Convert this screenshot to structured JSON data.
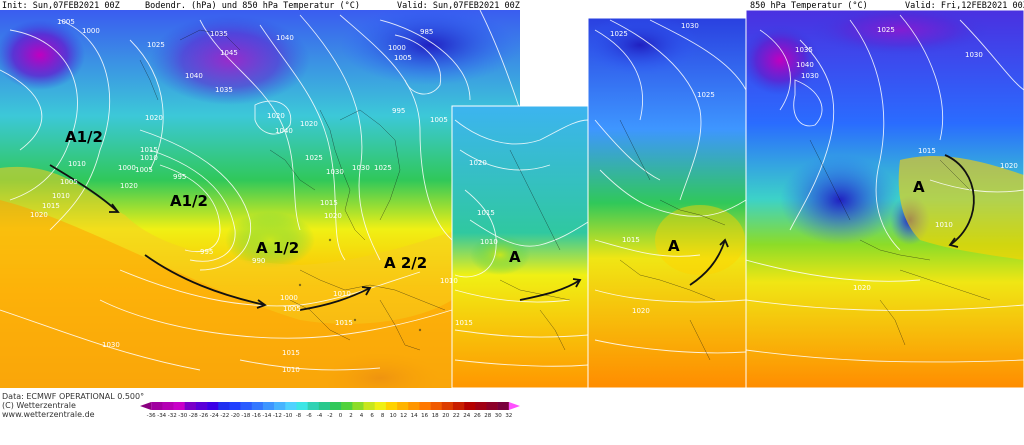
{
  "header": {
    "init": "Init: Sun,07FEB2021 00Z",
    "params_left": "Bodendr. (hPa) und 850 hPa Temperatur (°C)",
    "valid_left": "Valid: Sun,07FEB2021 00Z",
    "params_right": "850 hPa Temperatur (°C)",
    "valid_right": "Valid: Fri,12FEB2021 00Z"
  },
  "footer": {
    "model": "Data: ECMWF OPERATIONAL 0.500°",
    "copyright": "(C) Wetterzentrale",
    "url": "www.wetterzentrale.de"
  },
  "colorbar": {
    "ticks": [
      "-36",
      "-34",
      "-32",
      "-30",
      "-28",
      "-26",
      "-24",
      "-22",
      "-20",
      "-18",
      "-16",
      "-14",
      "-12",
      "-10",
      "-8",
      "-6",
      "-4",
      "-2",
      "0",
      "2",
      "4",
      "6",
      "8",
      "10",
      "12",
      "14",
      "16",
      "18",
      "20",
      "22",
      "24",
      "26",
      "28",
      "30",
      "32"
    ],
    "colors": [
      "#8a0080",
      "#a000a0",
      "#b400b4",
      "#c800c8",
      "#7a00c8",
      "#5a00d8",
      "#3c00e6",
      "#2030f0",
      "#2040ff",
      "#2a5cff",
      "#3478ff",
      "#3e96ff",
      "#48b4ff",
      "#50d2ff",
      "#3ce6e6",
      "#30d2b4",
      "#28c88c",
      "#30c85a",
      "#50d23c",
      "#8cdc28",
      "#c8e61e",
      "#f0f014",
      "#ffd200",
      "#ffb400",
      "#ff9600",
      "#ff7800",
      "#f05a00",
      "#dc3c00",
      "#c81e00",
      "#b40000",
      "#a00014",
      "#8c0028",
      "#78003c",
      "#ff50ff"
    ]
  },
  "annotations": [
    {
      "text": "A1/2"
    },
    {
      "text": "A1/2"
    },
    {
      "text": "A 1/2"
    },
    {
      "text": "A 2/2"
    },
    {
      "text": "A"
    },
    {
      "text": "A"
    },
    {
      "text": "A"
    }
  ],
  "isobar_labels": [
    "1005",
    "1000",
    "1025",
    "1035",
    "1045",
    "1040",
    "1040",
    "1035",
    "1020",
    "1015",
    "1010",
    "1005",
    "1000",
    "995",
    "990",
    "995",
    "1000",
    "1005",
    "1015",
    "1010",
    "1010",
    "1005",
    "1010",
    "1015",
    "1020",
    "1030",
    "1010",
    "1015",
    "1040",
    "1020",
    "1000",
    "1005",
    "985",
    "995",
    "1020",
    "1025",
    "1015",
    "1020",
    "1030",
    "1030",
    "1025",
    "1005",
    "1010",
    "1015",
    "1020",
    "1010",
    "1015",
    "1020",
    "1025",
    "1030",
    "1025",
    "1035",
    "1040",
    "1030",
    "1015",
    "1010",
    "1020",
    "1015",
    "1020",
    "1030",
    "1020",
    "1025"
  ]
}
